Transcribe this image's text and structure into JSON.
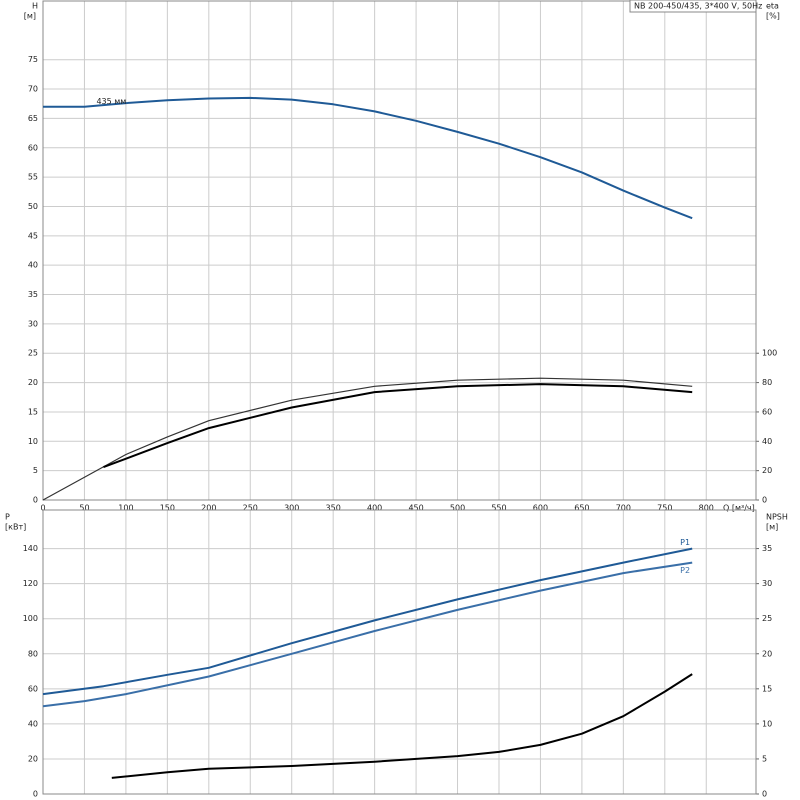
{
  "chart_data": [
    {
      "type": "line",
      "title": "NB 200-450/435, 3*400 V, 50Hz",
      "y_label": "H",
      "y_unit": "[м]",
      "y2_label": "eta",
      "y2_unit": "[%]",
      "x_label": "Q [м³/ч]",
      "xlim": [
        0,
        860
      ],
      "xticks": [
        0,
        50,
        100,
        150,
        200,
        250,
        300,
        350,
        400,
        450,
        500,
        550,
        600,
        650,
        700,
        750,
        800
      ],
      "ylim": [
        0,
        85
      ],
      "yticks": [
        0,
        5,
        10,
        15,
        20,
        25,
        30,
        35,
        40,
        45,
        50,
        55,
        60,
        65,
        70,
        75
      ],
      "y2lim": [
        0,
        340
      ],
      "y2ticks": [
        0,
        20,
        40,
        60,
        80,
        100
      ],
      "grid": true,
      "series": [
        {
          "name": "435 мм",
          "color": "#1f5a96",
          "x": [
            0,
            50,
            100,
            150,
            200,
            250,
            300,
            350,
            400,
            450,
            500,
            550,
            600,
            650,
            700,
            750,
            783
          ],
          "values": [
            67,
            67,
            67.6,
            68.1,
            68.4,
            68.5,
            68.2,
            67.4,
            66.2,
            64.6,
            62.7,
            60.7,
            58.4,
            55.8,
            52.7,
            49.8,
            48
          ]
        },
        {
          "color": "#333333",
          "axis": "y2",
          "x": [
            0,
            100,
            150,
            200,
            300,
            400,
            500,
            600,
            700,
            783
          ],
          "values": [
            0,
            31,
            43,
            54,
            68,
            77.5,
            81.6,
            83,
            81.6,
            77.5
          ]
        },
        {
          "color": "#000000",
          "axis": "y2",
          "x": [
            73,
            150,
            200,
            300,
            400,
            500,
            600,
            700,
            783
          ],
          "values": [
            22.4,
            38.8,
            49,
            63,
            73.5,
            77.5,
            79,
            77.5,
            73.5
          ]
        }
      ]
    },
    {
      "type": "line",
      "y_label": "P",
      "y_unit": "[кВт]",
      "y2_label": "NPSH",
      "y2_unit": "[м]",
      "xlim": [
        0,
        860
      ],
      "ylim": [
        0,
        162
      ],
      "yticks": [
        0,
        20,
        40,
        60,
        80,
        100,
        120,
        140
      ],
      "y2lim": [
        0,
        40.5
      ],
      "y2ticks": [
        0,
        5,
        10,
        15,
        20,
        25,
        30,
        35
      ],
      "grid": true,
      "series": [
        {
          "name": "P1",
          "color": "#1f5a96",
          "x": [
            0,
            73,
            150,
            200,
            300,
            400,
            500,
            600,
            700,
            783
          ],
          "values": [
            57,
            61.5,
            68,
            72,
            86,
            99,
            111,
            122,
            132,
            140
          ]
        },
        {
          "name": "P2",
          "color": "#3a6fa8",
          "x": [
            0,
            50,
            100,
            200,
            300,
            400,
            500,
            600,
            700,
            783
          ],
          "values": [
            50,
            53,
            57,
            67,
            80,
            93,
            105,
            116,
            126,
            132
          ]
        },
        {
          "color": "#000000",
          "axis": "y2",
          "x": [
            83,
            150,
            200,
            300,
            400,
            500,
            550,
            600,
            650,
            700,
            750,
            783
          ],
          "values": [
            2.3,
            3.1,
            3.6,
            4.0,
            4.6,
            5.4,
            6.0,
            7.0,
            8.6,
            11.1,
            14.6,
            17.1
          ]
        }
      ]
    }
  ]
}
